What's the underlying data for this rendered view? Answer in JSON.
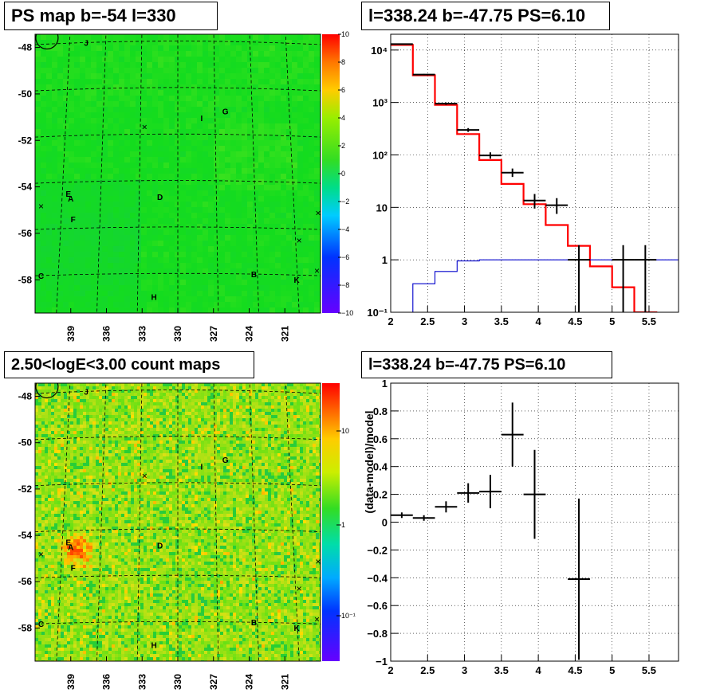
{
  "panels": {
    "map_top": {
      "title": "PS map b=-54 l=330",
      "lat_ticks": [
        "-48",
        "-50",
        "-52",
        "-54",
        "-56",
        "-58"
      ],
      "lon_ticks": [
        "339",
        "336",
        "333",
        "330",
        "327",
        "324",
        "321"
      ],
      "colorbar_ticks": [
        "10",
        "8",
        "6",
        "4",
        "2",
        "0",
        "−2",
        "−4",
        "−6",
        "−8",
        "−10"
      ],
      "sources": [
        "J",
        "I",
        "G",
        "E",
        "A",
        "D",
        "F",
        "C",
        "B",
        "K",
        "H"
      ]
    },
    "map_bottom": {
      "title": "2.50<logE<3.00 count maps",
      "lat_ticks": [
        "-48",
        "-50",
        "-52",
        "-54",
        "-56",
        "-58"
      ],
      "lon_ticks": [
        "339",
        "336",
        "333",
        "330",
        "327",
        "324",
        "321"
      ],
      "colorbar_ticks": [
        "10",
        "1",
        "10⁻¹"
      ],
      "sources": [
        "J",
        "I",
        "G",
        "E",
        "A",
        "D",
        "F",
        "C",
        "B",
        "K",
        "H"
      ]
    },
    "spectrum": {
      "title": "l=338.24 b=-47.75 PS=6.10",
      "x_ticks": [
        "2",
        "2.5",
        "3",
        "3.5",
        "4",
        "4.5",
        "5",
        "5.5"
      ],
      "y_ticks": [
        "10⁻¹",
        "1",
        "10",
        "10²",
        "10³",
        "10⁴"
      ]
    },
    "residual": {
      "title": "l=338.24 b=-47.75 PS=6.10",
      "ylabel": "(data-model)/model",
      "x_ticks": [
        "2",
        "2.5",
        "3",
        "3.5",
        "4",
        "4.5",
        "5",
        "5.5"
      ],
      "y_ticks": [
        "1",
        "0.8",
        "0.6",
        "0.4",
        "0.2",
        "0",
        "−0.2",
        "−0.4",
        "−0.6",
        "−0.8",
        "−1"
      ]
    }
  },
  "chart_data": [
    {
      "type": "heatmap",
      "title": "PS map b=-54 l=330",
      "xlabel": "",
      "ylabel": "",
      "xlim": [
        342,
        318
      ],
      "ylim": [
        -59.5,
        -47.5
      ],
      "color_range": [
        -10,
        10
      ],
      "colormap": "rainbow",
      "grid": true,
      "sources": [
        {
          "name": "J",
          "lon": 337.7,
          "lat": -48.0
        },
        {
          "name": "I",
          "lon": 328.0,
          "lat": -51.3
        },
        {
          "name": "G",
          "lon": 326.0,
          "lat": -51.0
        },
        {
          "name": "E",
          "lon": 339.2,
          "lat": -54.5
        },
        {
          "name": "A",
          "lon": 339.0,
          "lat": -54.7
        },
        {
          "name": "D",
          "lon": 331.5,
          "lat": -54.7
        },
        {
          "name": "F",
          "lon": 338.8,
          "lat": -55.6
        },
        {
          "name": "C",
          "lon": 341.5,
          "lat": -58.0
        },
        {
          "name": "B",
          "lon": 323.6,
          "lat": -58.0
        },
        {
          "name": "K",
          "lon": 320.0,
          "lat": -58.2
        },
        {
          "name": "H",
          "lon": 332.0,
          "lat": -59.0
        }
      ]
    },
    {
      "type": "heatmap",
      "title": "2.50<logE<3.00 count maps",
      "xlabel": "",
      "ylabel": "",
      "xlim": [
        342,
        318
      ],
      "ylim": [
        -59.5,
        -47.5
      ],
      "color_range": [
        0.05,
        20
      ],
      "color_scale": "log",
      "colormap": "rainbow",
      "grid": true
    },
    {
      "type": "line",
      "title": "l=338.24 b=-47.75 PS=6.10",
      "xlabel": "",
      "ylabel": "",
      "xlim": [
        2,
        5.9
      ],
      "ylim": [
        0.1,
        20000
      ],
      "y_scale": "log",
      "grid": true,
      "series": [
        {
          "style": "step",
          "color": "#ff0000",
          "bins": [
            [
              2.0,
              2.3,
              12500
            ],
            [
              2.3,
              2.6,
              3300
            ],
            [
              2.6,
              2.9,
              900
            ],
            [
              2.9,
              3.2,
              250
            ],
            [
              3.2,
              3.5,
              80
            ],
            [
              3.5,
              3.8,
              28
            ],
            [
              3.8,
              4.1,
              11.5
            ],
            [
              4.1,
              4.4,
              4.6
            ],
            [
              4.4,
              4.7,
              1.85
            ],
            [
              4.7,
              5.0,
              0.75
            ],
            [
              5.0,
              5.3,
              0.3
            ],
            [
              5.3,
              5.6,
              0.1
            ]
          ]
        },
        {
          "style": "step",
          "color": "#0000cc",
          "bins": [
            [
              2.0,
              2.3,
              0.1
            ],
            [
              2.3,
              2.6,
              0.35
            ],
            [
              2.6,
              2.9,
              0.6
            ],
            [
              2.9,
              3.2,
              0.95
            ],
            [
              3.2,
              3.5,
              1.0
            ],
            [
              3.5,
              5.9,
              1.0
            ]
          ]
        },
        {
          "style": "errorbar",
          "color": "#000000",
          "points": [
            {
              "x": 2.15,
              "y": 13000,
              "xerr": 0.15,
              "ylo": 12800,
              "yhi": 13200
            },
            {
              "x": 2.45,
              "y": 3400,
              "xerr": 0.15,
              "ylo": 3300,
              "yhi": 3500
            },
            {
              "x": 2.75,
              "y": 950,
              "xerr": 0.15,
              "ylo": 900,
              "yhi": 1000
            },
            {
              "x": 3.05,
              "y": 300,
              "xerr": 0.15,
              "ylo": 275,
              "yhi": 325
            },
            {
              "x": 3.35,
              "y": 98,
              "xerr": 0.15,
              "ylo": 85,
              "yhi": 112
            },
            {
              "x": 3.65,
              "y": 46,
              "xerr": 0.15,
              "ylo": 38,
              "yhi": 55
            },
            {
              "x": 3.95,
              "y": 13.5,
              "xerr": 0.15,
              "ylo": 9.5,
              "yhi": 18
            },
            {
              "x": 4.25,
              "y": 11,
              "xerr": 0.15,
              "ylo": 7.5,
              "yhi": 15
            },
            {
              "x": 4.55,
              "y": 1,
              "xerr": 0.15,
              "ylo": 0.1,
              "yhi": 1.9
            },
            {
              "x": 5.15,
              "y": 1,
              "xerr": 0.15,
              "ylo": 0.1,
              "yhi": 1.9
            },
            {
              "x": 5.45,
              "y": 1,
              "xerr": 0.15,
              "ylo": 0.1,
              "yhi": 1.9
            }
          ]
        }
      ]
    },
    {
      "type": "scatter",
      "title": "l=338.24 b=-47.75 PS=6.10",
      "xlabel": "",
      "ylabel": "(data-model)/model",
      "xlim": [
        2,
        5.9
      ],
      "ylim": [
        -1,
        1
      ],
      "grid": true,
      "points": [
        {
          "x": 2.15,
          "y": 0.05,
          "xerr": 0.15,
          "yerr": 0.02
        },
        {
          "x": 2.45,
          "y": 0.03,
          "xerr": 0.15,
          "yerr": 0.02
        },
        {
          "x": 2.75,
          "y": 0.11,
          "xerr": 0.15,
          "yerr": 0.04
        },
        {
          "x": 3.05,
          "y": 0.21,
          "xerr": 0.15,
          "yerr": 0.07
        },
        {
          "x": 3.35,
          "y": 0.22,
          "xerr": 0.15,
          "yerr": 0.12
        },
        {
          "x": 3.65,
          "y": 0.63,
          "xerr": 0.15,
          "yerr": 0.23
        },
        {
          "x": 3.95,
          "y": 0.2,
          "xerr": 0.15,
          "yerr": 0.32
        },
        {
          "x": 4.55,
          "y": -0.41,
          "xerr": 0.15,
          "yerr": 0.58
        }
      ]
    }
  ]
}
